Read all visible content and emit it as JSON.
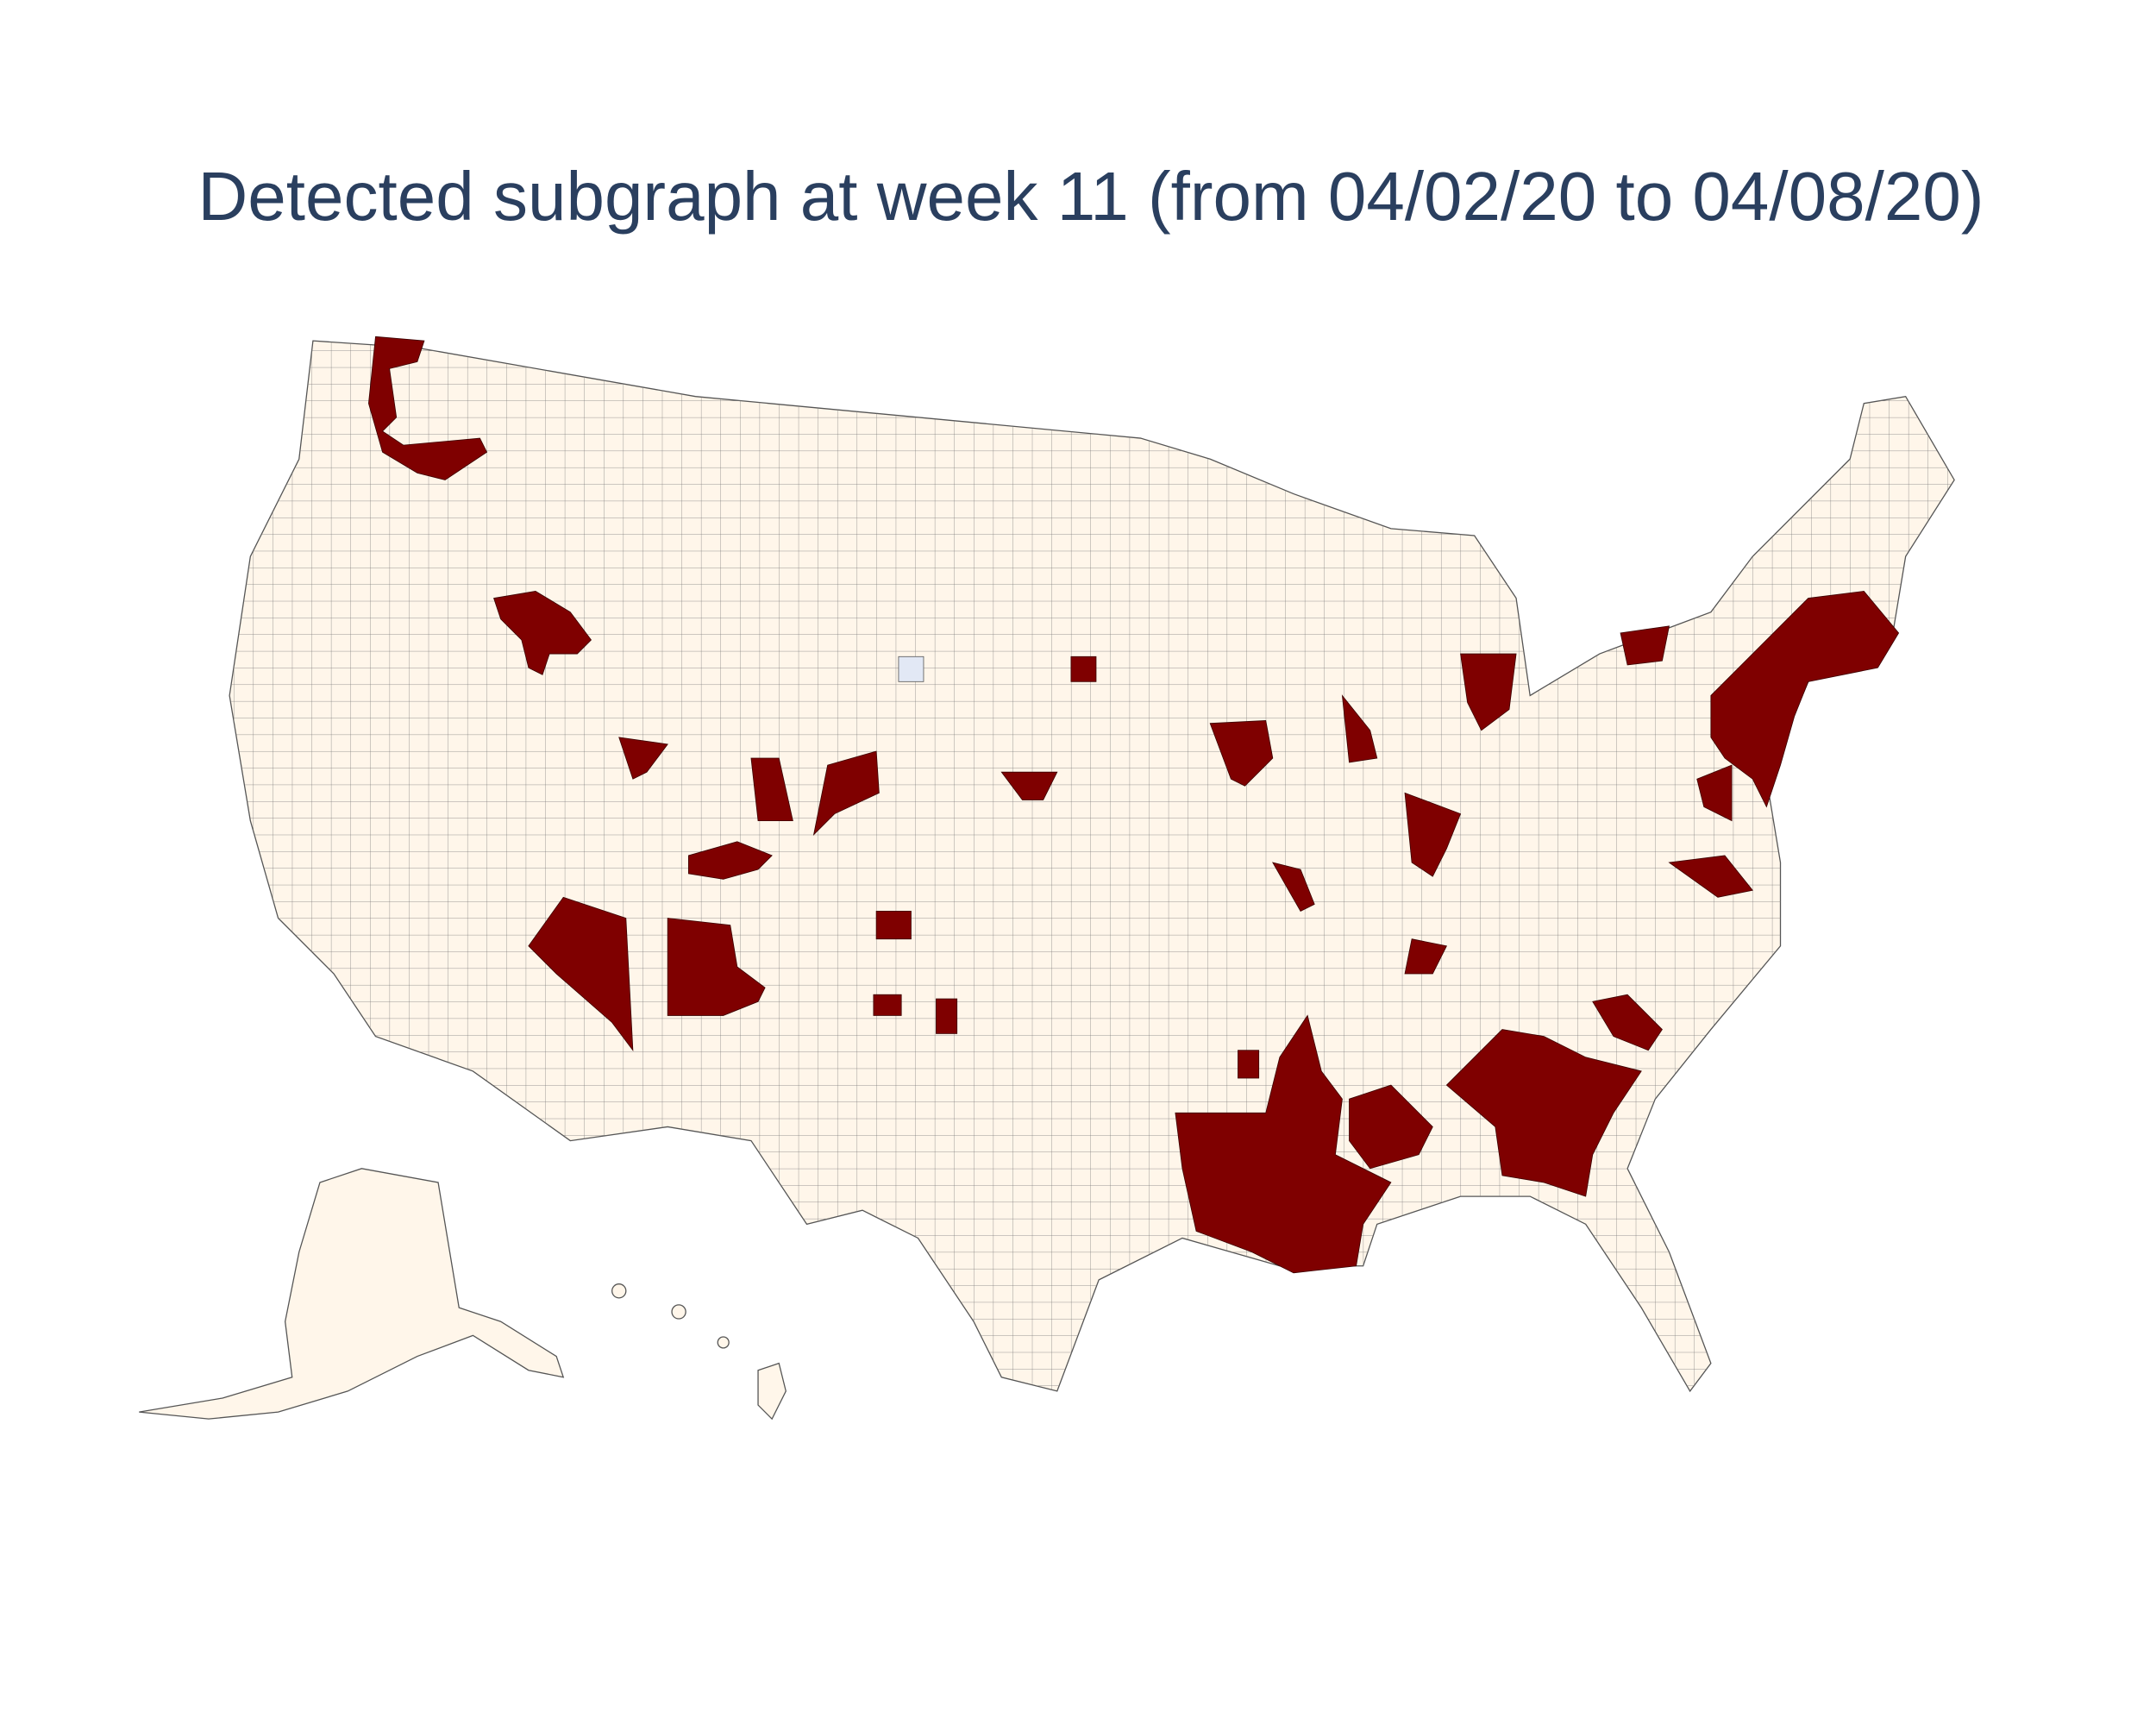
{
  "title": "Detected subgraph at week 11 (from 04/02/20 to 04/08/20)"
}
